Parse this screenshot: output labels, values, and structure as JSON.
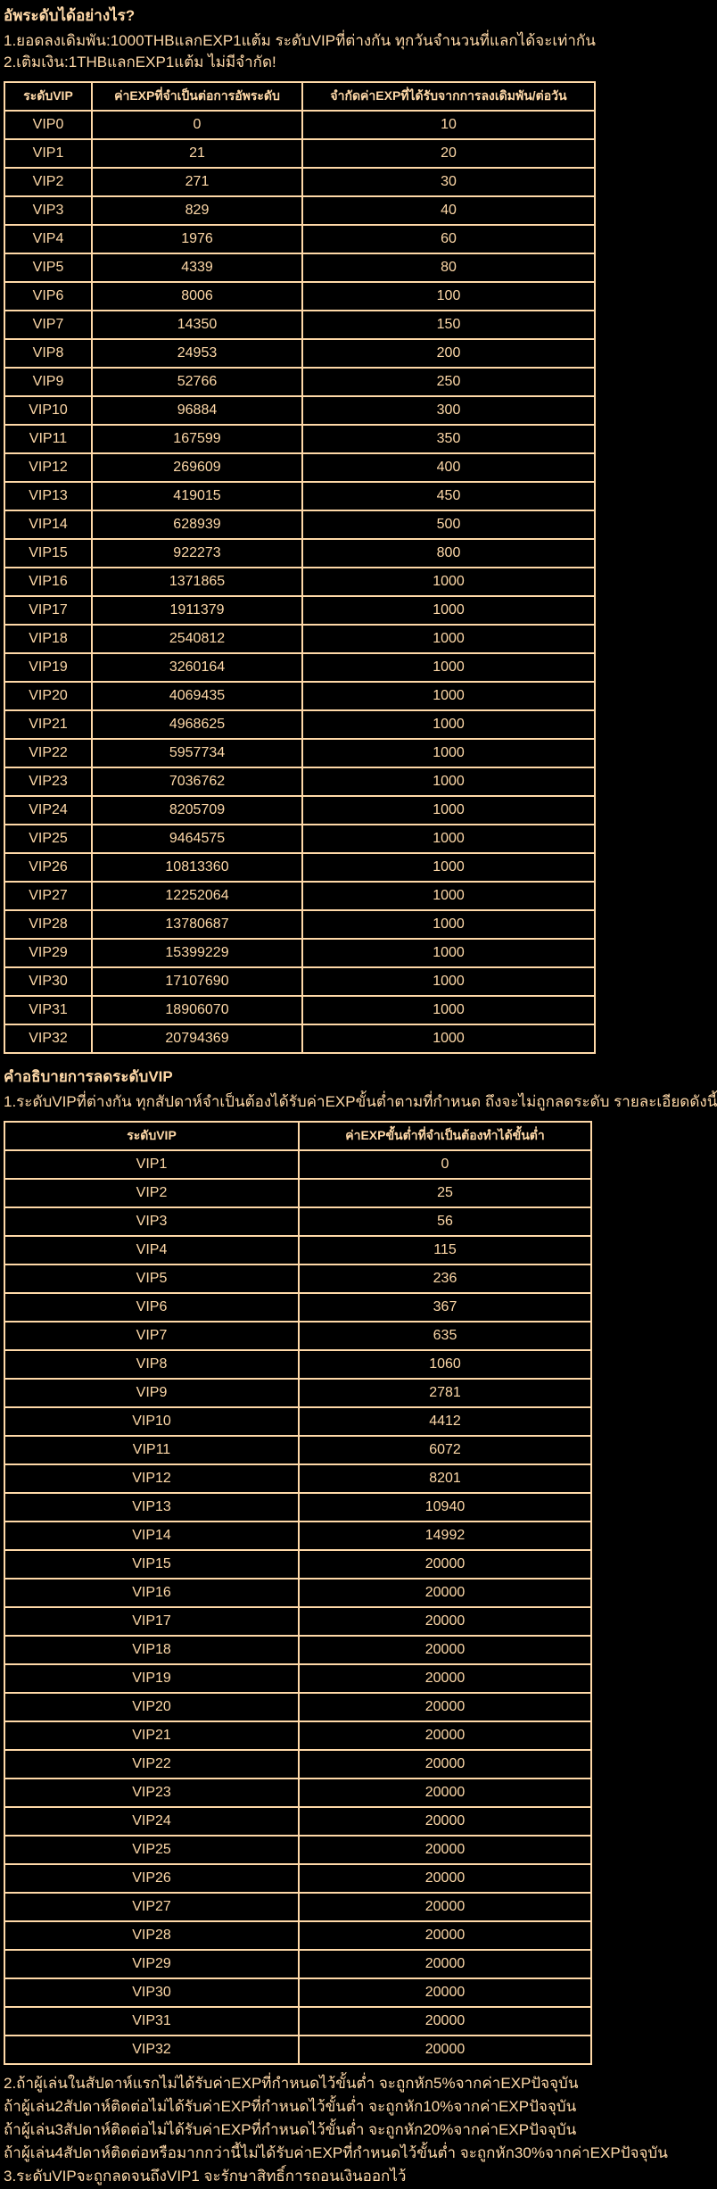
{
  "theme": {
    "background_color": "#000000",
    "text_color": "#FFD9A8",
    "border_color": "#FFD9A8"
  },
  "section1": {
    "title": "อัพระดับได้อย่างไร?",
    "lines": [
      "1.ยอดลงเดิมพัน:1000THBแลกEXP1แต้ม ระดับVIPที่ต่างกัน ทุกวันจำนวนที่แลกได้จะเท่ากัน",
      "2.เติมเงิน:1THBแลกEXP1แต้ม ไม่มีจำกัด!"
    ]
  },
  "table1": {
    "headers": [
      "ระดับVIP",
      "ค่าEXPที่จำเป็นต่อการอัพระดับ",
      "จำกัดค่าEXPที่ได้รับจากการลงเดิมพัน/ต่อวัน"
    ],
    "rows": [
      [
        "VIP0",
        "0",
        "10"
      ],
      [
        "VIP1",
        "21",
        "20"
      ],
      [
        "VIP2",
        "271",
        "30"
      ],
      [
        "VIP3",
        "829",
        "40"
      ],
      [
        "VIP4",
        "1976",
        "60"
      ],
      [
        "VIP5",
        "4339",
        "80"
      ],
      [
        "VIP6",
        "8006",
        "100"
      ],
      [
        "VIP7",
        "14350",
        "150"
      ],
      [
        "VIP8",
        "24953",
        "200"
      ],
      [
        "VIP9",
        "52766",
        "250"
      ],
      [
        "VIP10",
        "96884",
        "300"
      ],
      [
        "VIP11",
        "167599",
        "350"
      ],
      [
        "VIP12",
        "269609",
        "400"
      ],
      [
        "VIP13",
        "419015",
        "450"
      ],
      [
        "VIP14",
        "628939",
        "500"
      ],
      [
        "VIP15",
        "922273",
        "800"
      ],
      [
        "VIP16",
        "1371865",
        "1000"
      ],
      [
        "VIP17",
        "1911379",
        "1000"
      ],
      [
        "VIP18",
        "2540812",
        "1000"
      ],
      [
        "VIP19",
        "3260164",
        "1000"
      ],
      [
        "VIP20",
        "4069435",
        "1000"
      ],
      [
        "VIP21",
        "4968625",
        "1000"
      ],
      [
        "VIP22",
        "5957734",
        "1000"
      ],
      [
        "VIP23",
        "7036762",
        "1000"
      ],
      [
        "VIP24",
        "8205709",
        "1000"
      ],
      [
        "VIP25",
        "9464575",
        "1000"
      ],
      [
        "VIP26",
        "10813360",
        "1000"
      ],
      [
        "VIP27",
        "12252064",
        "1000"
      ],
      [
        "VIP28",
        "13780687",
        "1000"
      ],
      [
        "VIP29",
        "15399229",
        "1000"
      ],
      [
        "VIP30",
        "17107690",
        "1000"
      ],
      [
        "VIP31",
        "18906070",
        "1000"
      ],
      [
        "VIP32",
        "20794369",
        "1000"
      ]
    ]
  },
  "section2": {
    "title": "คำอธิบายการลดระดับVIP",
    "line": "1.ระดับVIPที่ต่างกัน ทุกสัปดาห์จำเป็นต้องได้รับค่าEXPขั้นต่ำตามที่กำหนด ถึงจะไม่ถูกลดระดับ รายละเอียดดังนี้"
  },
  "table2": {
    "headers": [
      "ระดับVIP",
      "ค่าEXPขั้นต่ำที่จำเป็นต้องทำได้ขั้นต่ำ"
    ],
    "rows": [
      [
        "VIP1",
        "0"
      ],
      [
        "VIP2",
        "25"
      ],
      [
        "VIP3",
        "56"
      ],
      [
        "VIP4",
        "115"
      ],
      [
        "VIP5",
        "236"
      ],
      [
        "VIP6",
        "367"
      ],
      [
        "VIP7",
        "635"
      ],
      [
        "VIP8",
        "1060"
      ],
      [
        "VIP9",
        "2781"
      ],
      [
        "VIP10",
        "4412"
      ],
      [
        "VIP11",
        "6072"
      ],
      [
        "VIP12",
        "8201"
      ],
      [
        "VIP13",
        "10940"
      ],
      [
        "VIP14",
        "14992"
      ],
      [
        "VIP15",
        "20000"
      ],
      [
        "VIP16",
        "20000"
      ],
      [
        "VIP17",
        "20000"
      ],
      [
        "VIP18",
        "20000"
      ],
      [
        "VIP19",
        "20000"
      ],
      [
        "VIP20",
        "20000"
      ],
      [
        "VIP21",
        "20000"
      ],
      [
        "VIP22",
        "20000"
      ],
      [
        "VIP23",
        "20000"
      ],
      [
        "VIP24",
        "20000"
      ],
      [
        "VIP25",
        "20000"
      ],
      [
        "VIP26",
        "20000"
      ],
      [
        "VIP27",
        "20000"
      ],
      [
        "VIP28",
        "20000"
      ],
      [
        "VIP29",
        "20000"
      ],
      [
        "VIP30",
        "20000"
      ],
      [
        "VIP31",
        "20000"
      ],
      [
        "VIP32",
        "20000"
      ]
    ]
  },
  "footer": {
    "lines": [
      "2.ถ้าผู้เล่นในสัปดาห์แรกไม่ได้รับค่าEXPที่กำหนดไว้ขั้นต่ำ จะถูกหัก5%จากค่าEXPปัจจุบัน",
      "ถ้าผู้เล่น2สัปดาห์ติดต่อไม่ได้รับค่าEXPที่กำหนดไว้ขั้นต่ำ จะถูกหัก10%จากค่าEXPปัจจุบัน",
      "ถ้าผู้เล่น3สัปดาห์ติดต่อไม่ได้รับค่าEXPที่กำหนดไว้ขั้นต่ำ จะถูกหัก20%จากค่าEXPปัจจุบัน",
      "ถ้าผู้เล่น4สัปดาห์ติดต่อหรือมากกว่านี้ไม่ได้รับค่าEXPที่กำหนดไว้ขั้นต่ำ จะถูกหัก30%จากค่าEXPปัจจุบัน",
      "3.ระดับVIPจะถูกลดจนถึงVIP1 จะรักษาสิทธิ์การถอนเงินออกไว้"
    ]
  }
}
